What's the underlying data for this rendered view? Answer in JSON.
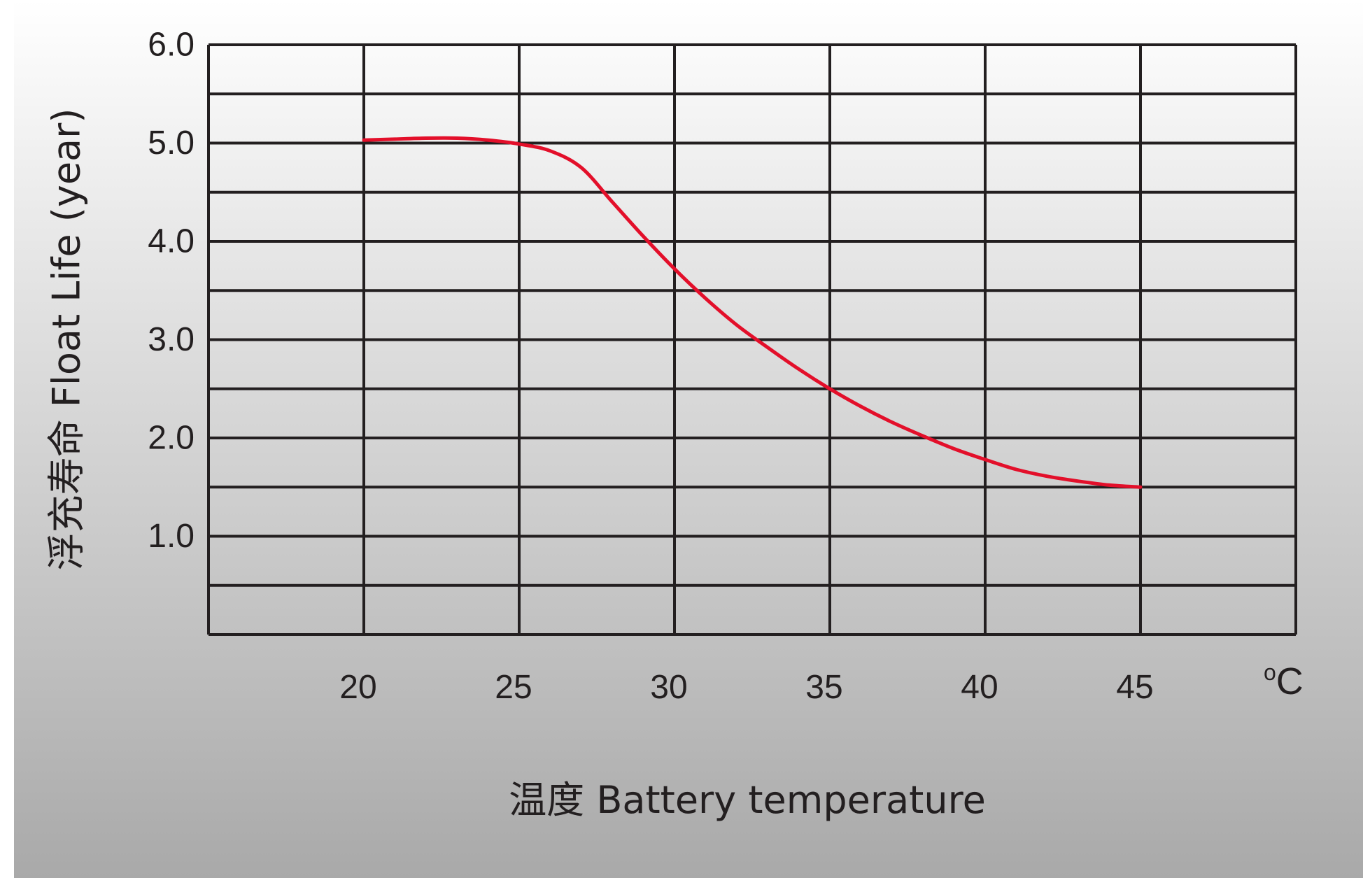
{
  "colors": {
    "background_top": "#ffffff",
    "background_bottom": "#a9a9a9",
    "grid": "#231f20",
    "series": "#e30f2a"
  },
  "chart_data": {
    "type": "line",
    "title": "",
    "xlabel": "温度  Battery temperature",
    "ylabel": "浮充寿命  Float Life (year)",
    "x_unit": "°C",
    "x_unit_degree": "o",
    "x_unit_letter": "C",
    "xlim": [
      15,
      50
    ],
    "ylim": [
      0,
      6
    ],
    "x_ticks": [
      20,
      25,
      30,
      35,
      40,
      45
    ],
    "x_tick_labels": [
      "20",
      "25",
      "30",
      "35",
      "40",
      "45"
    ],
    "y_ticks": [
      1,
      2,
      3,
      4,
      5,
      6
    ],
    "y_tick_labels": [
      "1.0",
      "2.0",
      "3.0",
      "4.0",
      "5.0",
      "6.0"
    ],
    "grid": true,
    "x_grid_step": 5,
    "y_grid_step": 0.5,
    "legend": "none",
    "series": [
      {
        "x": [
          20,
          21,
          22,
          23,
          24,
          25,
          26,
          27,
          28,
          29,
          30,
          31,
          32,
          33,
          34,
          35,
          36,
          37,
          38,
          39,
          40,
          41,
          42,
          43,
          44,
          45
        ],
        "values": [
          5.03,
          5.04,
          5.05,
          5.05,
          5.03,
          4.99,
          4.92,
          4.75,
          4.4,
          4.05,
          3.72,
          3.42,
          3.15,
          2.92,
          2.7,
          2.5,
          2.32,
          2.16,
          2.02,
          1.89,
          1.78,
          1.68,
          1.61,
          1.56,
          1.52,
          1.5
        ]
      }
    ]
  }
}
